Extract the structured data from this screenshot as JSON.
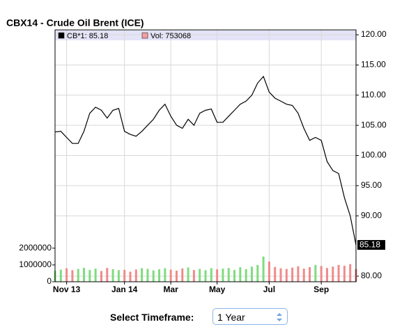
{
  "chart_data": {
    "type": "line",
    "title": "CBX14 - Crude Oil Brent (ICE)",
    "categories": [
      null,
      null,
      "Nov 13",
      null,
      null,
      null,
      null,
      null,
      null,
      null,
      null,
      null,
      "Jan 14",
      null,
      null,
      null,
      null,
      null,
      null,
      null,
      "Mar",
      null,
      null,
      null,
      null,
      null,
      null,
      null,
      "May",
      null,
      null,
      null,
      null,
      null,
      null,
      null,
      null,
      "Jul",
      null,
      null,
      null,
      null,
      null,
      null,
      null,
      null,
      "Sep",
      null,
      null,
      null,
      null,
      null,
      null
    ],
    "series": [
      {
        "name": "CB*1: 85.18",
        "color": "#000000",
        "values": [
          103.9,
          104,
          103,
          102,
          102,
          104,
          107,
          108,
          107.5,
          106.2,
          107.5,
          107.8,
          104,
          103.5,
          103.2,
          104,
          105,
          106,
          107.5,
          108.5,
          106.5,
          105,
          104.5,
          106,
          105,
          107,
          107.5,
          107.7,
          105.5,
          105.5,
          106.5,
          107.5,
          108.5,
          109,
          110,
          112,
          113.1,
          110.5,
          109.5,
          109,
          108.5,
          108.3,
          107,
          104.5,
          102.5,
          103,
          102.5,
          99,
          97.5,
          97,
          93,
          90,
          85.18
        ]
      },
      {
        "name": "Vol: 753068",
        "type": "bar",
        "axis": "y2",
        "color": "#f4a0a0",
        "up_color": "#7edc7e",
        "down_color": "#f08a8a",
        "values": [
          650000,
          720000,
          800000,
          690000,
          760000,
          830000,
          700000,
          780000,
          640000,
          820000,
          750000,
          690000,
          710000,
          600000,
          730000,
          810000,
          770000,
          680000,
          740000,
          800000,
          720000,
          660000,
          790000,
          850000,
          700000,
          760000,
          690000,
          810000,
          740000,
          780000,
          820000,
          700000,
          860000,
          750000,
          900000,
          1000000,
          1500000,
          1200000,
          880000,
          800000,
          760000,
          840000,
          920000,
          780000,
          870000,
          1000000,
          940000,
          820000,
          900000,
          1000000,
          950000,
          1050000,
          753068
        ]
      }
    ],
    "ylim": [
      79.08,
      120.81
    ],
    "yticks": [
      {
        "value": 80,
        "label": "80.00"
      },
      {
        "value": 90,
        "label": "90.00"
      },
      {
        "value": 95,
        "label": "95.00"
      },
      {
        "value": 100,
        "label": "100.00"
      },
      {
        "value": 105,
        "label": "105.00"
      },
      {
        "value": 110,
        "label": "110.00"
      },
      {
        "value": 115,
        "label": "115.00"
      },
      {
        "value": 120,
        "label": "120.00"
      }
    ],
    "y2lim": [
      0,
      15000000
    ],
    "y2ticks": [
      0,
      1000000,
      2000000
    ],
    "grid": true,
    "last_value_box": true
  },
  "controls": {
    "label": "Select Timeframe:",
    "value": "1 Year"
  }
}
